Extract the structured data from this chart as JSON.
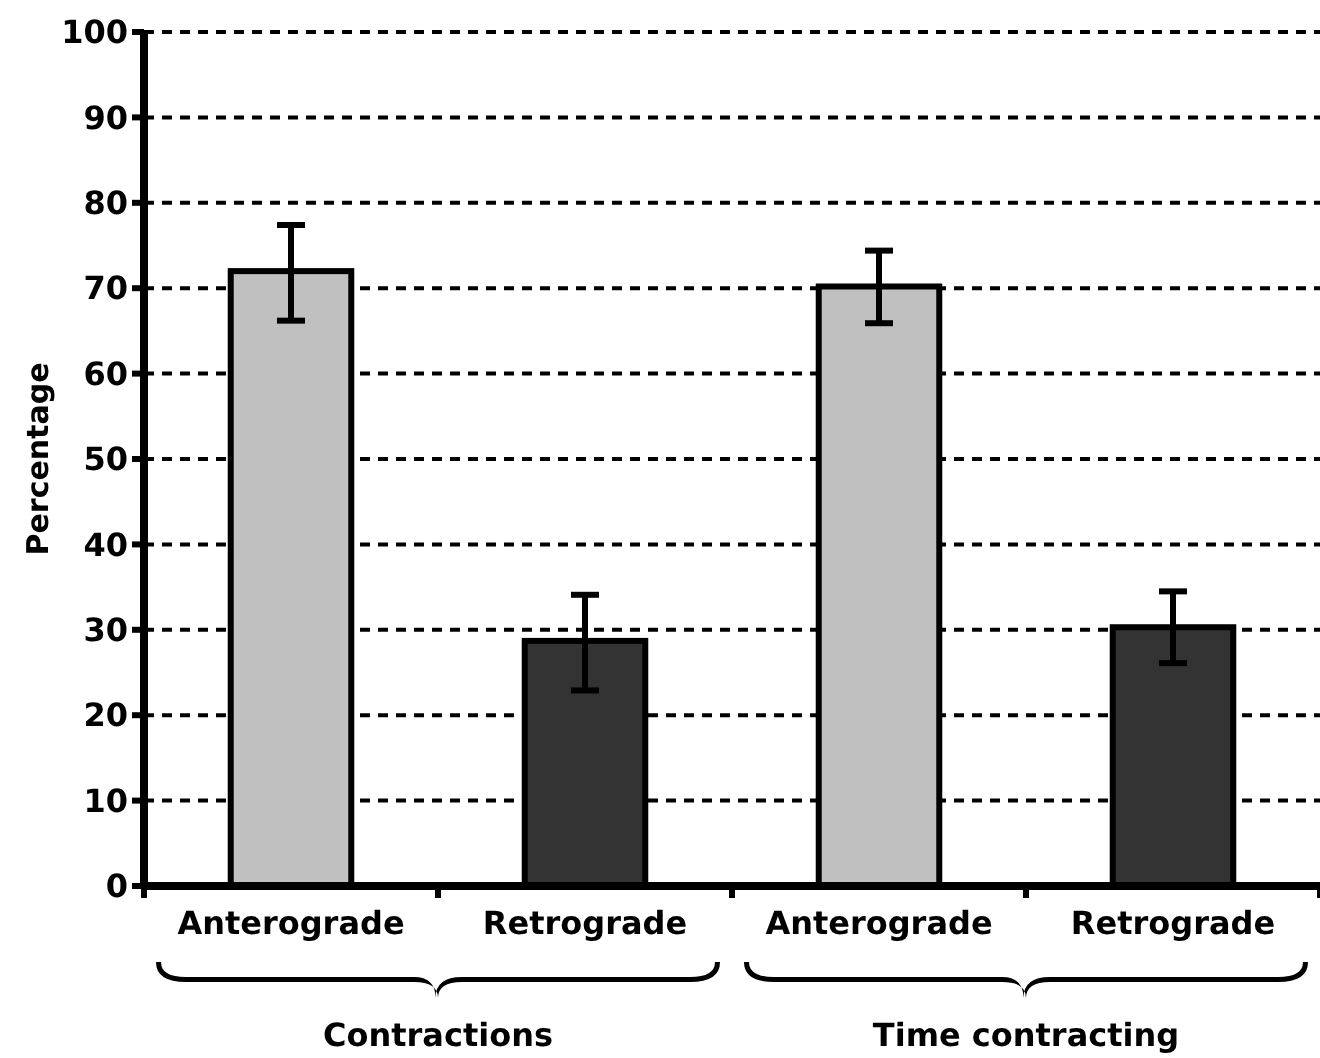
{
  "chart_data": {
    "type": "bar",
    "ylabel": "Percentage",
    "categories": [
      "Anterograde",
      "Retrograde",
      "Anterograde",
      "Retrograde"
    ],
    "values": [
      72,
      28.7,
      70.2,
      30.3
    ],
    "colors": [
      "#c0c0c0",
      "#333333",
      "#c0c0c0",
      "#333333"
    ],
    "errors": [
      [
        66.2,
        77.4
      ],
      [
        22.9,
        34.1
      ],
      [
        65.9,
        74.4
      ],
      [
        26.1,
        34.5
      ]
    ],
    "ylim": [
      0,
      100
    ],
    "yticks": [
      0,
      10,
      20,
      30,
      40,
      50,
      60,
      70,
      80,
      90,
      100
    ],
    "grid": "y",
    "annotations": [
      "Contractions",
      "Time contracting"
    ]
  }
}
